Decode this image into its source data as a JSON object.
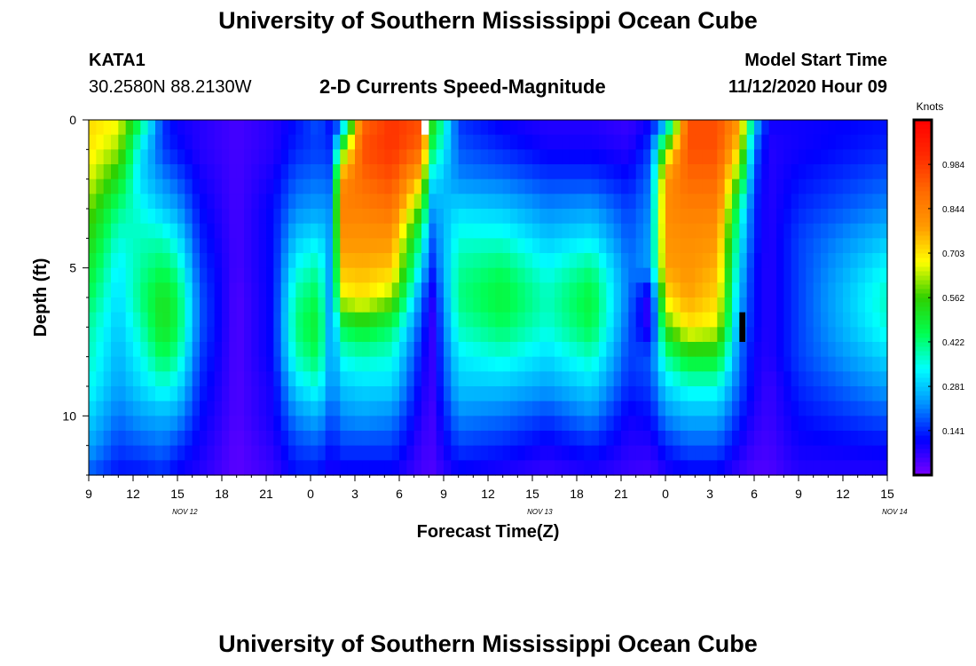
{
  "page": {
    "title_top": "University of Southern Mississippi Ocean Cube",
    "title_bottom": "University of Southern Mississippi Ocean Cube",
    "station_id": "KATA1",
    "coordinates": "30.2580N 88.2130W",
    "plot_title": "2-D Currents Speed-Magnitude",
    "model_label": "Model Start Time",
    "model_time": "11/12/2020 Hour 09"
  },
  "chart_data": {
    "type": "heatmap",
    "title": "2-D Currents Speed-Magnitude",
    "xlabel": "Forecast Time(Z)",
    "ylabel": "Depth (ft)",
    "x_tick_labels": [
      "9",
      "12",
      "15",
      "18",
      "21",
      "0",
      "3",
      "6",
      "9",
      "12",
      "15",
      "18",
      "21",
      "0",
      "3",
      "6",
      "9",
      "12",
      "15"
    ],
    "x_day_labels": [
      {
        "label": "NOV 12",
        "hour": 15.5
      },
      {
        "label": "NOV 13",
        "hour": 39.5
      },
      {
        "label": "NOV 14",
        "hour": 63.5
      }
    ],
    "x_range_hours": [
      0,
      54
    ],
    "y_tick_labels": [
      "0",
      "5",
      "10"
    ],
    "y_ticks": [
      0,
      5,
      10
    ],
    "y_range_ft": [
      0,
      12
    ],
    "y_reversed": true,
    "colorbar": {
      "title": "Knots",
      "tick_labels": [
        "0.141",
        "0.281",
        "0.422",
        "0.562",
        "0.703",
        "0.844",
        "0.984"
      ],
      "ticks": [
        0.141,
        0.281,
        0.422,
        0.562,
        0.703,
        0.844,
        0.984
      ],
      "range": [
        0.0,
        1.125
      ],
      "colors": [
        "#7a00ff",
        "#0000ff",
        "#0090ff",
        "#00ffff",
        "#00ff50",
        "#2fd000",
        "#ffff00",
        "#ff9a00",
        "#ff6a00",
        "#ff2a00",
        "#ff0000"
      ]
    },
    "depth_levels_ft": [
      0,
      1,
      2,
      3,
      4,
      5,
      6,
      7,
      8,
      9,
      10,
      11,
      12
    ],
    "profiles": [
      {
        "hour": 0,
        "values": [
          0.72,
          0.7,
          0.66,
          0.6,
          0.55,
          0.5,
          0.45,
          0.4,
          0.38,
          0.35,
          0.3,
          0.25,
          0.18
        ]
      },
      {
        "hour": 2,
        "values": [
          0.68,
          0.62,
          0.52,
          0.42,
          0.36,
          0.32,
          0.3,
          0.28,
          0.26,
          0.24,
          0.2,
          0.16,
          0.12
        ]
      },
      {
        "hour": 3.5,
        "values": [
          0.45,
          0.32,
          0.3,
          0.35,
          0.38,
          0.4,
          0.42,
          0.38,
          0.34,
          0.3,
          0.24,
          0.18,
          0.12
        ]
      },
      {
        "hour": 5,
        "values": [
          0.15,
          0.16,
          0.22,
          0.28,
          0.38,
          0.45,
          0.52,
          0.52,
          0.45,
          0.36,
          0.26,
          0.2,
          0.14
        ]
      },
      {
        "hour": 6,
        "values": [
          0.1,
          0.12,
          0.18,
          0.24,
          0.32,
          0.4,
          0.46,
          0.46,
          0.4,
          0.32,
          0.24,
          0.16,
          0.1
        ]
      },
      {
        "hour": 7.5,
        "values": [
          0.08,
          0.08,
          0.1,
          0.12,
          0.14,
          0.16,
          0.18,
          0.18,
          0.16,
          0.14,
          0.12,
          0.1,
          0.08
        ]
      },
      {
        "hour": 10,
        "values": [
          0.05,
          0.05,
          0.05,
          0.05,
          0.05,
          0.05,
          0.04,
          0.04,
          0.04,
          0.04,
          0.04,
          0.03,
          0.03
        ]
      },
      {
        "hour": 12.5,
        "values": [
          0.08,
          0.08,
          0.1,
          0.12,
          0.12,
          0.12,
          0.12,
          0.12,
          0.12,
          0.1,
          0.1,
          0.08,
          0.06
        ]
      },
      {
        "hour": 14,
        "values": [
          0.12,
          0.14,
          0.18,
          0.22,
          0.28,
          0.34,
          0.4,
          0.42,
          0.38,
          0.3,
          0.22,
          0.16,
          0.12
        ]
      },
      {
        "hour": 15.5,
        "values": [
          0.18,
          0.16,
          0.2,
          0.24,
          0.32,
          0.4,
          0.46,
          0.5,
          0.45,
          0.36,
          0.26,
          0.18,
          0.12
        ]
      },
      {
        "hour": 16.5,
        "values": [
          0.1,
          0.14,
          0.18,
          0.22,
          0.22,
          0.2,
          0.18,
          0.18,
          0.2,
          0.2,
          0.16,
          0.12,
          0.08
        ]
      },
      {
        "hour": 17,
        "values": [
          0.15,
          0.5,
          0.8,
          0.85,
          0.8,
          0.75,
          0.66,
          0.45,
          0.35,
          0.28,
          0.22,
          0.16,
          0.1
        ]
      },
      {
        "hour": 18.5,
        "values": [
          0.9,
          0.95,
          0.9,
          0.85,
          0.8,
          0.76,
          0.7,
          0.5,
          0.38,
          0.3,
          0.24,
          0.16,
          0.1
        ]
      },
      {
        "hour": 20.5,
        "values": [
          1.0,
          1.0,
          0.95,
          0.88,
          0.8,
          0.74,
          0.62,
          0.44,
          0.36,
          0.3,
          0.22,
          0.16,
          0.1
        ]
      },
      {
        "hour": 22.5,
        "values": [
          0.95,
          0.9,
          0.72,
          0.55,
          0.4,
          0.3,
          0.2,
          0.16,
          0.12,
          0.1,
          0.08,
          0.06,
          0.05
        ]
      },
      {
        "hour": 23.2,
        "values": [
          0.55,
          0.45,
          0.32,
          0.24,
          0.18,
          0.14,
          0.08,
          0.06,
          0.06,
          0.06,
          0.05,
          0.05,
          0.04
        ]
      },
      {
        "hour": 25,
        "values": [
          0.15,
          0.18,
          0.22,
          0.3,
          0.36,
          0.4,
          0.42,
          0.38,
          0.32,
          0.28,
          0.22,
          0.16,
          0.1
        ]
      },
      {
        "hour": 28,
        "values": [
          0.1,
          0.14,
          0.2,
          0.28,
          0.36,
          0.44,
          0.48,
          0.44,
          0.36,
          0.28,
          0.2,
          0.14,
          0.08
        ]
      },
      {
        "hour": 31,
        "values": [
          0.08,
          0.1,
          0.16,
          0.22,
          0.28,
          0.34,
          0.38,
          0.36,
          0.3,
          0.24,
          0.16,
          0.1,
          0.06
        ]
      },
      {
        "hour": 34,
        "values": [
          0.08,
          0.1,
          0.16,
          0.24,
          0.32,
          0.42,
          0.48,
          0.46,
          0.38,
          0.3,
          0.22,
          0.14,
          0.08
        ]
      },
      {
        "hour": 36.5,
        "values": [
          0.06,
          0.08,
          0.12,
          0.16,
          0.18,
          0.2,
          0.2,
          0.18,
          0.16,
          0.14,
          0.1,
          0.08,
          0.06
        ]
      },
      {
        "hour": 38,
        "values": [
          0.1,
          0.16,
          0.2,
          0.22,
          0.24,
          0.24,
          0.06,
          0.06,
          0.18,
          0.16,
          0.12,
          0.08,
          0.05
        ]
      },
      {
        "hour": 39,
        "values": [
          0.2,
          0.6,
          0.8,
          0.82,
          0.8,
          0.78,
          0.7,
          0.55,
          0.4,
          0.3,
          0.22,
          0.14,
          0.08
        ]
      },
      {
        "hour": 40.5,
        "values": [
          0.95,
          0.95,
          0.9,
          0.85,
          0.82,
          0.8,
          0.78,
          0.7,
          0.5,
          0.36,
          0.26,
          0.18,
          0.1
        ]
      },
      {
        "hour": 42.5,
        "values": [
          0.95,
          0.95,
          0.9,
          0.85,
          0.8,
          0.76,
          0.72,
          0.66,
          0.5,
          0.36,
          0.26,
          0.18,
          0.1
        ]
      },
      {
        "hour": 44,
        "values": [
          0.8,
          0.7,
          0.55,
          0.4,
          0.34,
          0.3,
          0.26,
          0.22,
          0.2,
          0.18,
          0.14,
          0.1,
          0.06
        ]
      },
      {
        "hour": 45,
        "values": [
          0.3,
          0.2,
          0.16,
          0.14,
          0.14,
          0.12,
          0.12,
          0.12,
          0.1,
          0.1,
          0.08,
          0.06,
          0.04
        ]
      },
      {
        "hour": 46,
        "values": [
          0.1,
          0.08,
          0.08,
          0.08,
          0.08,
          0.08,
          0.08,
          0.08,
          0.08,
          0.06,
          0.06,
          0.05,
          0.04
        ]
      },
      {
        "hour": 48,
        "values": [
          0.1,
          0.1,
          0.12,
          0.14,
          0.16,
          0.16,
          0.16,
          0.16,
          0.16,
          0.14,
          0.12,
          0.1,
          0.08
        ]
      },
      {
        "hour": 54,
        "values": [
          0.12,
          0.14,
          0.18,
          0.22,
          0.28,
          0.34,
          0.38,
          0.36,
          0.3,
          0.24,
          0.18,
          0.12,
          0.08
        ]
      }
    ],
    "missing_cells": [
      {
        "hour_from": 22.5,
        "hour_to": 23.0,
        "depth_from": 0.0,
        "depth_to": 0.5,
        "color": "#ffffff"
      },
      {
        "hour_from": 44.0,
        "hour_to": 44.4,
        "depth_from": 6.5,
        "depth_to": 7.5,
        "color": "#000000"
      }
    ]
  }
}
